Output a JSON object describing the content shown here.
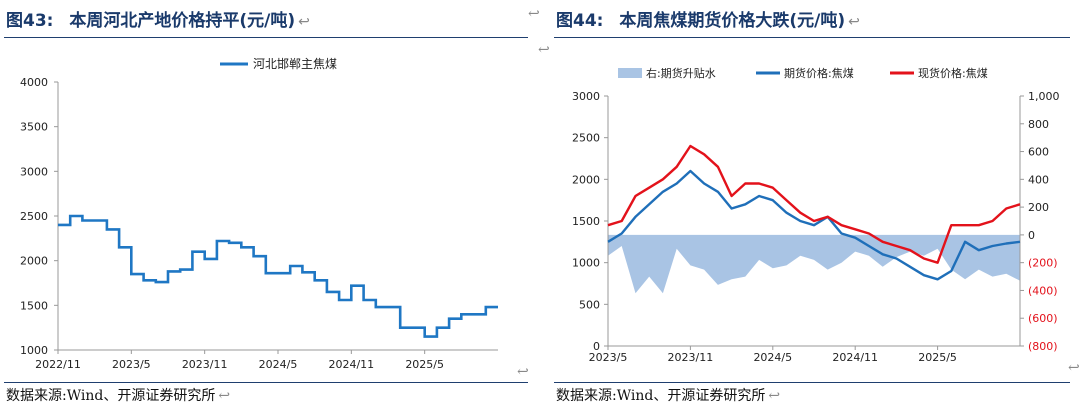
{
  "left": {
    "figure_label": "图43:",
    "title": "本周河北产地价格持平(元/吨)",
    "para_mark": "↩",
    "source": "数据来源:Wind、开源证券研究所",
    "chart_data": {
      "type": "line",
      "legend_position": "top-center",
      "series": [
        {
          "name": "河北邯郸主焦煤",
          "color": "#1f77c4",
          "points": [
            [
              "2022/11",
              2400
            ],
            [
              "2022/12",
              2400
            ],
            [
              "2022/12",
              2500
            ],
            [
              "2023/1",
              2500
            ],
            [
              "2023/1",
              2450
            ],
            [
              "2023/3",
              2450
            ],
            [
              "2023/3",
              2350
            ],
            [
              "2023/4",
              2350
            ],
            [
              "2023/4",
              2150
            ],
            [
              "2023/5",
              2150
            ],
            [
              "2023/5",
              1850
            ],
            [
              "2023/6",
              1850
            ],
            [
              "2023/6",
              1780
            ],
            [
              "2023/7",
              1780
            ],
            [
              "2023/7",
              1760
            ],
            [
              "2023/8",
              1760
            ],
            [
              "2023/8",
              1880
            ],
            [
              "2023/9",
              1880
            ],
            [
              "2023/9",
              1900
            ],
            [
              "2023/10",
              1900
            ],
            [
              "2023/10",
              2100
            ],
            [
              "2023/11",
              2100
            ],
            [
              "2023/11",
              2020
            ],
            [
              "2023/12",
              2020
            ],
            [
              "2023/12",
              2220
            ],
            [
              "2024/1",
              2220
            ],
            [
              "2024/1",
              2200
            ],
            [
              "2024/2",
              2200
            ],
            [
              "2024/2",
              2150
            ],
            [
              "2024/3",
              2150
            ],
            [
              "2024/3",
              2050
            ],
            [
              "2024/4",
              2050
            ],
            [
              "2024/4",
              1860
            ],
            [
              "2024/6",
              1860
            ],
            [
              "2024/6",
              1940
            ],
            [
              "2024/7",
              1940
            ],
            [
              "2024/7",
              1870
            ],
            [
              "2024/8",
              1870
            ],
            [
              "2024/8",
              1780
            ],
            [
              "2024/9",
              1780
            ],
            [
              "2024/9",
              1650
            ],
            [
              "2024/10",
              1650
            ],
            [
              "2024/10",
              1560
            ],
            [
              "2024/11",
              1560
            ],
            [
              "2024/11",
              1720
            ],
            [
              "2024/12",
              1720
            ],
            [
              "2024/12",
              1560
            ],
            [
              "2025/1",
              1560
            ],
            [
              "2025/1",
              1480
            ],
            [
              "2025/3",
              1480
            ],
            [
              "2025/3",
              1250
            ],
            [
              "2025/5",
              1250
            ],
            [
              "2025/5",
              1150
            ],
            [
              "2025/6",
              1150
            ],
            [
              "2025/6",
              1250
            ],
            [
              "2025/7",
              1250
            ],
            [
              "2025/7",
              1350
            ],
            [
              "2025/8",
              1350
            ],
            [
              "2025/8",
              1400
            ],
            [
              "2025/9",
              1400
            ],
            [
              "2025/10",
              1400
            ],
            [
              "2025/10",
              1480
            ],
            [
              "2025/11",
              1480
            ]
          ]
        }
      ],
      "x_ticks": [
        "2022/11",
        "2023/5",
        "2023/11",
        "2024/5",
        "2024/11",
        "2025/5"
      ],
      "y_ticks": [
        1000,
        1500,
        2000,
        2500,
        3000,
        3500,
        4000
      ],
      "ylim": [
        1000,
        4000
      ],
      "x_range": [
        "2022/11",
        "2025/11"
      ]
    }
  },
  "right": {
    "figure_label": "图44:",
    "title": "本周焦煤期货价格大跌(元/吨)",
    "para_mark": "↩",
    "source": "数据来源:Wind、开源证券研究所",
    "chart_data": {
      "type": "line",
      "legend_position": "top-center",
      "series": [
        {
          "name": "右:期货升贴水",
          "type": "area",
          "axis": "right",
          "color": "#a9c4e4",
          "points": [
            [
              "2023/5",
              -150
            ],
            [
              "2023/6",
              -80
            ],
            [
              "2023/7",
              -420
            ],
            [
              "2023/8",
              -300
            ],
            [
              "2023/9",
              -420
            ],
            [
              "2023/10",
              -100
            ],
            [
              "2023/11",
              -220
            ],
            [
              "2023/12",
              -250
            ],
            [
              "2024/1",
              -360
            ],
            [
              "2024/2",
              -320
            ],
            [
              "2024/3",
              -300
            ],
            [
              "2024/4",
              -180
            ],
            [
              "2024/5",
              -240
            ],
            [
              "2024/6",
              -220
            ],
            [
              "2024/7",
              -150
            ],
            [
              "2024/8",
              -180
            ],
            [
              "2024/9",
              -250
            ],
            [
              "2024/10",
              -200
            ],
            [
              "2024/11",
              -120
            ],
            [
              "2024/12",
              -150
            ],
            [
              "2025/1",
              -230
            ],
            [
              "2025/2",
              -160
            ],
            [
              "2025/3",
              -120
            ],
            [
              "2025/4",
              -150
            ],
            [
              "2025/5",
              -100
            ],
            [
              "2025/6",
              -250
            ],
            [
              "2025/7",
              -320
            ],
            [
              "2025/8",
              -250
            ],
            [
              "2025/9",
              -300
            ],
            [
              "2025/10",
              -280
            ],
            [
              "2025/11",
              -330
            ]
          ]
        },
        {
          "name": "期货价格:焦煤",
          "type": "line",
          "axis": "left",
          "color": "#1f6fb9",
          "points": [
            [
              "2023/5",
              1250
            ],
            [
              "2023/6",
              1350
            ],
            [
              "2023/7",
              1550
            ],
            [
              "2023/8",
              1700
            ],
            [
              "2023/9",
              1850
            ],
            [
              "2023/10",
              1950
            ],
            [
              "2023/11",
              2100
            ],
            [
              "2023/12",
              1950
            ],
            [
              "2024/1",
              1850
            ],
            [
              "2024/2",
              1650
            ],
            [
              "2024/3",
              1700
            ],
            [
              "2024/4",
              1800
            ],
            [
              "2024/5",
              1750
            ],
            [
              "2024/6",
              1600
            ],
            [
              "2024/7",
              1500
            ],
            [
              "2024/8",
              1450
            ],
            [
              "2024/9",
              1550
            ],
            [
              "2024/10",
              1350
            ],
            [
              "2024/11",
              1300
            ],
            [
              "2024/12",
              1200
            ],
            [
              "2025/1",
              1100
            ],
            [
              "2025/2",
              1050
            ],
            [
              "2025/3",
              950
            ],
            [
              "2025/4",
              850
            ],
            [
              "2025/5",
              800
            ],
            [
              "2025/6",
              900
            ],
            [
              "2025/7",
              1250
            ],
            [
              "2025/8",
              1150
            ],
            [
              "2025/9",
              1200
            ],
            [
              "2025/10",
              1230
            ],
            [
              "2025/11",
              1250
            ]
          ]
        },
        {
          "name": "现货价格:焦煤",
          "type": "line",
          "axis": "left",
          "color": "#e3121b",
          "points": [
            [
              "2023/5",
              1450
            ],
            [
              "2023/6",
              1500
            ],
            [
              "2023/7",
              1800
            ],
            [
              "2023/8",
              1900
            ],
            [
              "2023/9",
              2000
            ],
            [
              "2023/10",
              2150
            ],
            [
              "2023/11",
              2400
            ],
            [
              "2023/12",
              2300
            ],
            [
              "2024/1",
              2150
            ],
            [
              "2024/2",
              1800
            ],
            [
              "2024/3",
              1950
            ],
            [
              "2024/4",
              1950
            ],
            [
              "2024/5",
              1900
            ],
            [
              "2024/6",
              1750
            ],
            [
              "2024/7",
              1600
            ],
            [
              "2024/8",
              1500
            ],
            [
              "2024/9",
              1550
            ],
            [
              "2024/10",
              1450
            ],
            [
              "2024/11",
              1400
            ],
            [
              "2024/12",
              1350
            ],
            [
              "2025/1",
              1250
            ],
            [
              "2025/2",
              1200
            ],
            [
              "2025/3",
              1150
            ],
            [
              "2025/4",
              1050
            ],
            [
              "2025/5",
              1000
            ],
            [
              "2025/6",
              1450
            ],
            [
              "2025/7",
              1450
            ],
            [
              "2025/8",
              1450
            ],
            [
              "2025/9",
              1500
            ],
            [
              "2025/10",
              1650
            ],
            [
              "2025/11",
              1700
            ]
          ]
        }
      ],
      "x_ticks": [
        "2023/5",
        "2023/11",
        "2024/5",
        "2024/11",
        "2025/5"
      ],
      "y_left_ticks": [
        0,
        500,
        1000,
        1500,
        2000,
        2500,
        3000
      ],
      "ylim_left": [
        0,
        3000
      ],
      "y_right_ticks": [
        "(800)",
        "(600)",
        "(400)",
        "(200)",
        "0",
        "200",
        "400",
        "600",
        "800",
        "1,000"
      ],
      "ylim_right": [
        -800,
        1000
      ],
      "x_range": [
        "2023/5",
        "2025/11"
      ]
    }
  }
}
